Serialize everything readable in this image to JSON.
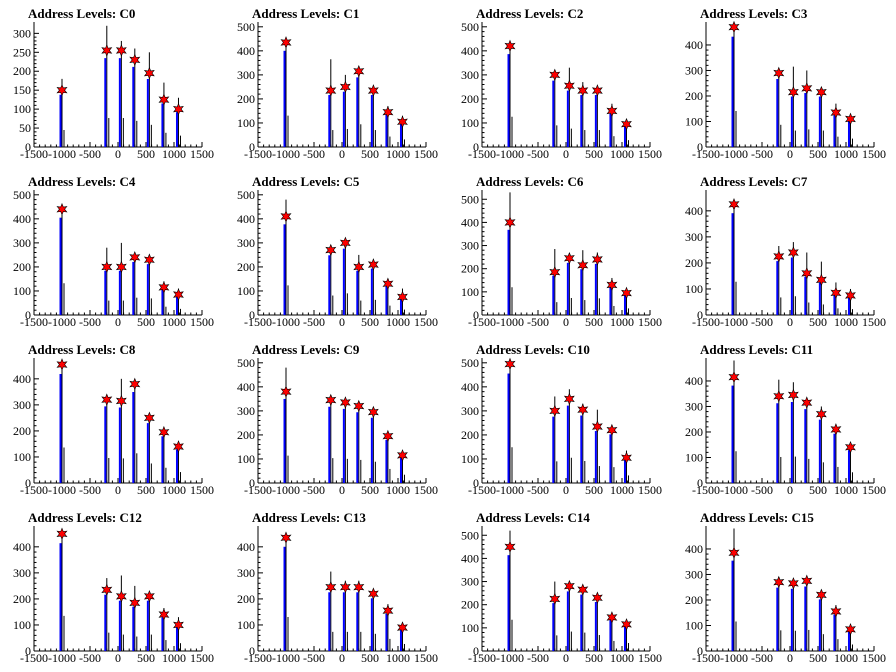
{
  "chart_data": [
    {
      "title": "Address Levels: C0",
      "type": "bar",
      "xlim": [
        -1500,
        1500
      ],
      "ylim": [
        0,
        330
      ],
      "yticks": [
        0,
        50,
        100,
        150,
        200,
        250,
        300
      ],
      "xticks": [
        -1500,
        -1000,
        -500,
        0,
        500,
        1000,
        1500
      ],
      "peaks_x": [
        -1000,
        -200,
        60,
        300,
        560,
        820,
        1080
      ],
      "peaks_y": [
        180,
        320,
        280,
        260,
        250,
        170,
        130
      ],
      "markers_y": [
        150,
        255,
        255,
        230,
        195,
        125,
        100
      ]
    },
    {
      "title": "Address Levels: C1",
      "type": "bar",
      "xlim": [
        -1500,
        1500
      ],
      "ylim": [
        0,
        520
      ],
      "yticks": [
        0,
        100,
        200,
        300,
        400,
        500
      ],
      "xticks": [
        -1500,
        -1000,
        -500,
        0,
        500,
        1000,
        1500
      ],
      "peaks_x": [
        -1000,
        -200,
        60,
        300,
        560,
        820,
        1080
      ],
      "peaks_y": [
        430,
        365,
        300,
        325,
        250,
        170,
        130
      ],
      "markers_y": [
        435,
        235,
        250,
        315,
        235,
        145,
        105
      ]
    },
    {
      "title": "Address Levels: C2",
      "type": "bar",
      "xlim": [
        -1500,
        1500
      ],
      "ylim": [
        0,
        520
      ],
      "yticks": [
        0,
        100,
        200,
        300,
        400,
        500
      ],
      "xticks": [
        -1500,
        -1000,
        -500,
        0,
        500,
        1000,
        1500
      ],
      "peaks_x": [
        -1000,
        -200,
        60,
        300,
        560,
        820,
        1080
      ],
      "peaks_y": [
        430,
        305,
        330,
        270,
        250,
        180,
        110
      ],
      "markers_y": [
        420,
        300,
        255,
        235,
        235,
        150,
        95
      ]
    },
    {
      "title": "Address Levels: C3",
      "type": "bar",
      "xlim": [
        -1500,
        1500
      ],
      "ylim": [
        0,
        490
      ],
      "yticks": [
        0,
        100,
        200,
        300,
        400
      ],
      "xticks": [
        -1500,
        -1000,
        -500,
        0,
        500,
        1000,
        1500
      ],
      "peaks_x": [
        -1000,
        -200,
        60,
        300,
        560,
        820,
        1080
      ],
      "peaks_y": [
        460,
        300,
        315,
        300,
        220,
        170,
        120
      ],
      "markers_y": [
        470,
        290,
        215,
        230,
        215,
        135,
        110
      ]
    },
    {
      "title": "Address Levels: C4",
      "type": "bar",
      "xlim": [
        -1500,
        1500
      ],
      "ylim": [
        0,
        520
      ],
      "yticks": [
        0,
        100,
        200,
        300,
        400,
        500
      ],
      "xticks": [
        -1500,
        -1000,
        -500,
        0,
        500,
        1000,
        1500
      ],
      "peaks_x": [
        -1000,
        -200,
        60,
        300,
        560,
        820,
        1080
      ],
      "peaks_y": [
        440,
        280,
        300,
        250,
        250,
        140,
        110
      ],
      "markers_y": [
        440,
        200,
        200,
        240,
        230,
        115,
        85
      ]
    },
    {
      "title": "Address Levels: C5",
      "type": "bar",
      "xlim": [
        -1500,
        1500
      ],
      "ylim": [
        0,
        520
      ],
      "yticks": [
        0,
        100,
        200,
        300,
        400,
        500
      ],
      "xticks": [
        -1500,
        -1000,
        -500,
        0,
        500,
        1000,
        1500
      ],
      "peaks_x": [
        -1000,
        -200,
        60,
        300,
        560,
        820,
        1080
      ],
      "peaks_y": [
        480,
        290,
        300,
        250,
        230,
        150,
        110
      ],
      "markers_y": [
        410,
        270,
        300,
        200,
        210,
        130,
        75
      ]
    },
    {
      "title": "Address Levels: C6",
      "type": "bar",
      "xlim": [
        -1500,
        1500
      ],
      "ylim": [
        0,
        540
      ],
      "yticks": [
        0,
        100,
        200,
        300,
        400,
        500
      ],
      "xticks": [
        -1500,
        -1000,
        -500,
        0,
        500,
        1000,
        1500
      ],
      "peaks_x": [
        -1000,
        -200,
        60,
        300,
        560,
        820,
        1080
      ],
      "peaks_y": [
        530,
        285,
        265,
        280,
        270,
        160,
        110
      ],
      "markers_y": [
        400,
        185,
        245,
        215,
        240,
        130,
        95
      ]
    },
    {
      "title": "Address Levels: C7",
      "type": "bar",
      "xlim": [
        -1500,
        1500
      ],
      "ylim": [
        0,
        480
      ],
      "yticks": [
        0,
        100,
        200,
        300,
        400
      ],
      "xticks": [
        -1500,
        -1000,
        -500,
        0,
        500,
        1000,
        1500
      ],
      "peaks_x": [
        -1000,
        -200,
        60,
        300,
        560,
        820,
        1080
      ],
      "peaks_y": [
        440,
        265,
        280,
        240,
        205,
        125,
        100
      ],
      "markers_y": [
        425,
        225,
        240,
        160,
        135,
        85,
        75
      ]
    },
    {
      "title": "Address Levels: C8",
      "type": "bar",
      "xlim": [
        -1500,
        1500
      ],
      "ylim": [
        0,
        480
      ],
      "yticks": [
        0,
        100,
        200,
        300,
        400
      ],
      "xticks": [
        -1500,
        -1000,
        -500,
        0,
        500,
        1000,
        1500
      ],
      "peaks_x": [
        -1000,
        -200,
        60,
        300,
        560,
        820,
        1080
      ],
      "peaks_y": [
        470,
        320,
        400,
        380,
        260,
        210,
        150
      ],
      "markers_y": [
        455,
        320,
        315,
        380,
        250,
        195,
        140
      ]
    },
    {
      "title": "Address Levels: C9",
      "type": "bar",
      "xlim": [
        -1500,
        1500
      ],
      "ylim": [
        0,
        520
      ],
      "yticks": [
        0,
        100,
        200,
        300,
        400,
        500
      ],
      "xticks": [
        -1500,
        -1000,
        -500,
        0,
        500,
        1000,
        1500
      ],
      "peaks_x": [
        -1000,
        -200,
        60,
        300,
        560,
        820,
        1080
      ],
      "peaks_y": [
        480,
        355,
        340,
        330,
        310,
        200,
        125
      ],
      "markers_y": [
        380,
        345,
        335,
        320,
        295,
        195,
        115
      ]
    },
    {
      "title": "Address Levels: C10",
      "type": "bar",
      "xlim": [
        -1500,
        1500
      ],
      "ylim": [
        0,
        520
      ],
      "yticks": [
        0,
        100,
        200,
        300,
        400,
        500
      ],
      "xticks": [
        -1500,
        -1000,
        -500,
        0,
        500,
        1000,
        1500
      ],
      "peaks_x": [
        -1000,
        -200,
        60,
        300,
        560,
        820,
        1080
      ],
      "peaks_y": [
        505,
        360,
        390,
        330,
        305,
        200,
        135
      ],
      "markers_y": [
        495,
        300,
        350,
        305,
        235,
        220,
        105
      ]
    },
    {
      "title": "Address Levels: C11",
      "type": "bar",
      "xlim": [
        -1500,
        1500
      ],
      "ylim": [
        0,
        490
      ],
      "yticks": [
        0,
        100,
        200,
        300,
        400
      ],
      "xticks": [
        -1500,
        -1000,
        -500,
        0,
        500,
        1000,
        1500
      ],
      "peaks_x": [
        -1000,
        -200,
        60,
        300,
        560,
        820,
        1080
      ],
      "peaks_y": [
        480,
        405,
        395,
        330,
        300,
        210,
        155
      ],
      "markers_y": [
        415,
        340,
        345,
        315,
        270,
        210,
        140
      ]
    },
    {
      "title": "Address Levels: C12",
      "type": "bar",
      "xlim": [
        -1500,
        1500
      ],
      "ylim": [
        0,
        480
      ],
      "yticks": [
        0,
        100,
        200,
        300,
        400
      ],
      "xticks": [
        -1500,
        -1000,
        -500,
        0,
        500,
        1000,
        1500
      ],
      "peaks_x": [
        -1000,
        -200,
        60,
        300,
        560,
        820,
        1080
      ],
      "peaks_y": [
        460,
        280,
        290,
        250,
        215,
        165,
        130
      ],
      "markers_y": [
        450,
        235,
        210,
        185,
        210,
        140,
        100
      ]
    },
    {
      "title": "Address Levels: C13",
      "type": "bar",
      "xlim": [
        -1500,
        1500
      ],
      "ylim": [
        0,
        480
      ],
      "yticks": [
        0,
        100,
        200,
        300,
        400
      ],
      "xticks": [
        -1500,
        -1000,
        -500,
        0,
        500,
        1000,
        1500
      ],
      "peaks_x": [
        -1000,
        -200,
        60,
        300,
        560,
        820,
        1080
      ],
      "peaks_y": [
        440,
        305,
        270,
        270,
        230,
        180,
        110
      ],
      "markers_y": [
        435,
        245,
        245,
        245,
        220,
        155,
        90
      ]
    },
    {
      "title": "Address Levels: C14",
      "type": "bar",
      "xlim": [
        -1500,
        1500
      ],
      "ylim": [
        0,
        540
      ],
      "yticks": [
        0,
        100,
        200,
        300,
        400,
        500
      ],
      "xticks": [
        -1500,
        -1000,
        -500,
        0,
        500,
        1000,
        1500
      ],
      "peaks_x": [
        -1000,
        -200,
        60,
        300,
        560,
        820,
        1080
      ],
      "peaks_y": [
        520,
        300,
        290,
        270,
        250,
        160,
        130
      ],
      "markers_y": [
        450,
        225,
        280,
        265,
        230,
        145,
        115
      ]
    },
    {
      "title": "Address Levels: C15",
      "type": "bar",
      "xlim": [
        -1500,
        1500
      ],
      "ylim": [
        0,
        490
      ],
      "yticks": [
        0,
        100,
        200,
        300,
        400
      ],
      "xticks": [
        -1500,
        -1000,
        -500,
        0,
        500,
        1000,
        1500
      ],
      "peaks_x": [
        -1000,
        -200,
        60,
        300,
        560,
        820,
        1080
      ],
      "peaks_y": [
        480,
        290,
        270,
        285,
        240,
        180,
        100
      ],
      "markers_y": [
        385,
        270,
        265,
        275,
        220,
        155,
        85
      ]
    }
  ]
}
